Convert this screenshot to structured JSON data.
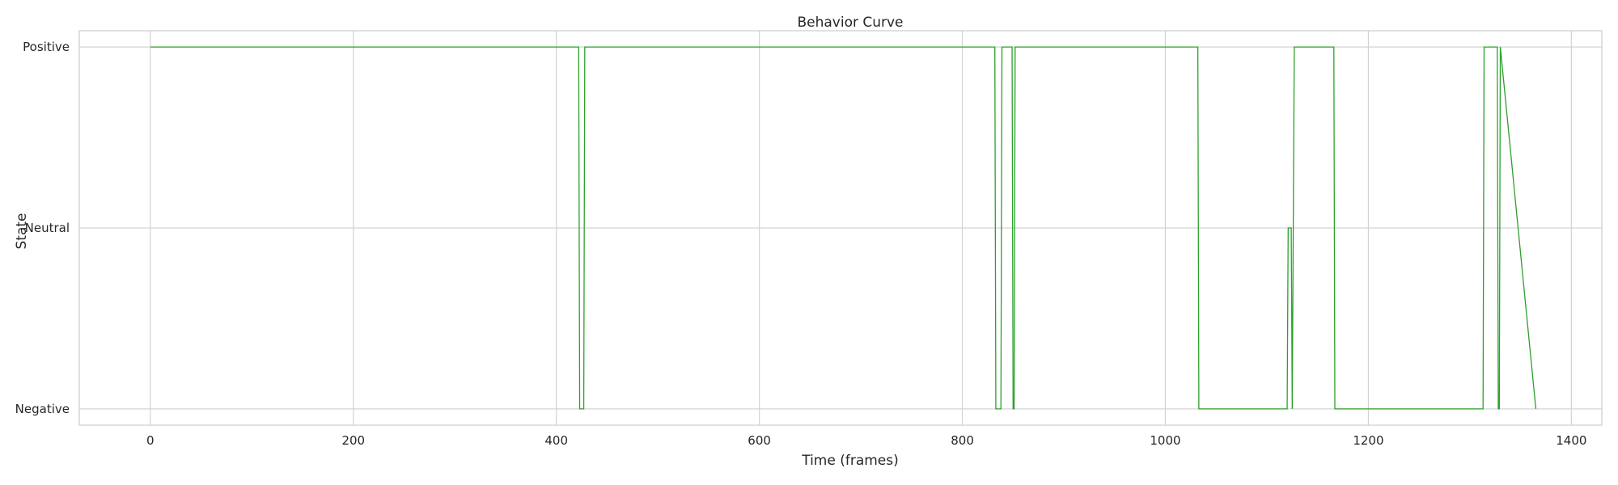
{
  "chart_data": {
    "type": "line",
    "title": "Behavior Curve",
    "xlabel": "Time (frames)",
    "ylabel": "State",
    "xlim": [
      -70,
      1430
    ],
    "ylim": [
      -0.09,
      2.09
    ],
    "xticks": [
      0,
      200,
      400,
      600,
      800,
      1000,
      1200,
      1400
    ],
    "yticks": [
      0,
      1,
      2
    ],
    "ytick_labels": [
      "Negative",
      "Neutral",
      "Positive"
    ],
    "grid": true,
    "series": [
      {
        "color": "#2ca02c",
        "x": [
          0,
          422,
          423,
          427,
          428,
          832,
          833,
          838,
          839,
          849,
          850,
          851,
          852,
          1032,
          1033,
          1120,
          1121,
          1124,
          1125,
          1126,
          1127,
          1166,
          1167,
          1313,
          1314,
          1327,
          1328,
          1329,
          1330,
          1365
        ],
        "y": [
          2,
          2,
          0,
          0,
          2,
          2,
          0,
          0,
          2,
          2,
          0,
          0,
          2,
          2,
          0,
          0,
          1,
          1,
          0,
          1,
          2,
          2,
          0,
          0,
          2,
          2,
          0,
          0,
          2,
          0
        ]
      }
    ]
  }
}
